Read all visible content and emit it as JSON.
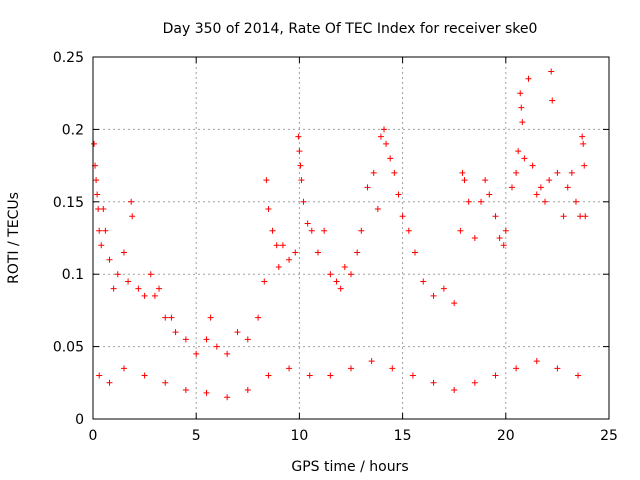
{
  "chart_data": {
    "type": "scatter",
    "title": "Day 350 of 2014, Rate Of TEC Index for receiver ske0",
    "xlabel": "GPS time / hours",
    "ylabel": "ROTI / TECUs",
    "xlim": [
      0,
      25
    ],
    "ylim": [
      0,
      0.25
    ],
    "xticks": [
      0,
      5,
      10,
      15,
      20,
      25
    ],
    "yticks": [
      0,
      0.05,
      0.1,
      0.15,
      0.2,
      0.25
    ],
    "xtick_labels": [
      "0",
      "5",
      "10",
      "15",
      "20",
      "25"
    ],
    "ytick_labels": [
      "0",
      "0.05",
      "0.1",
      "0.15",
      "0.2",
      "0.25"
    ],
    "grid": true,
    "marker": "plus",
    "series_color": "#ff0000",
    "series": [
      {
        "points": [
          [
            0.05,
            0.19
          ],
          [
            0.1,
            0.175
          ],
          [
            0.15,
            0.165
          ],
          [
            0.2,
            0.155
          ],
          [
            0.25,
            0.145
          ],
          [
            0.3,
            0.13
          ],
          [
            0.4,
            0.12
          ],
          [
            0.5,
            0.145
          ],
          [
            0.6,
            0.13
          ],
          [
            0.8,
            0.11
          ],
          [
            1.0,
            0.09
          ],
          [
            1.2,
            0.1
          ],
          [
            1.5,
            0.115
          ],
          [
            1.7,
            0.095
          ],
          [
            1.85,
            0.15
          ],
          [
            1.9,
            0.14
          ],
          [
            2.2,
            0.09
          ],
          [
            2.5,
            0.085
          ],
          [
            2.8,
            0.1
          ],
          [
            3.0,
            0.085
          ],
          [
            3.2,
            0.09
          ],
          [
            3.5,
            0.07
          ],
          [
            3.8,
            0.07
          ],
          [
            4.0,
            0.06
          ],
          [
            4.5,
            0.055
          ],
          [
            5.0,
            0.045
          ],
          [
            5.5,
            0.055
          ],
          [
            5.7,
            0.07
          ],
          [
            6.0,
            0.05
          ],
          [
            6.5,
            0.045
          ],
          [
            7.0,
            0.06
          ],
          [
            7.5,
            0.055
          ],
          [
            8.0,
            0.07
          ],
          [
            8.3,
            0.095
          ],
          [
            8.4,
            0.165
          ],
          [
            8.5,
            0.145
          ],
          [
            8.7,
            0.13
          ],
          [
            8.9,
            0.12
          ],
          [
            9.0,
            0.105
          ],
          [
            9.2,
            0.12
          ],
          [
            9.5,
            0.11
          ],
          [
            9.8,
            0.115
          ],
          [
            9.95,
            0.195
          ],
          [
            10.0,
            0.185
          ],
          [
            10.05,
            0.175
          ],
          [
            10.1,
            0.165
          ],
          [
            10.2,
            0.15
          ],
          [
            10.4,
            0.135
          ],
          [
            10.6,
            0.13
          ],
          [
            10.9,
            0.115
          ],
          [
            11.2,
            0.13
          ],
          [
            11.5,
            0.1
          ],
          [
            11.8,
            0.095
          ],
          [
            12.0,
            0.09
          ],
          [
            12.2,
            0.105
          ],
          [
            12.5,
            0.1
          ],
          [
            12.8,
            0.115
          ],
          [
            13.0,
            0.13
          ],
          [
            13.3,
            0.16
          ],
          [
            13.6,
            0.17
          ],
          [
            13.8,
            0.145
          ],
          [
            13.95,
            0.195
          ],
          [
            14.1,
            0.2
          ],
          [
            14.2,
            0.19
          ],
          [
            14.4,
            0.18
          ],
          [
            14.6,
            0.17
          ],
          [
            14.8,
            0.155
          ],
          [
            15.0,
            0.14
          ],
          [
            15.3,
            0.13
          ],
          [
            15.6,
            0.115
          ],
          [
            16.0,
            0.095
          ],
          [
            16.5,
            0.085
          ],
          [
            17.0,
            0.09
          ],
          [
            17.5,
            0.08
          ],
          [
            17.8,
            0.13
          ],
          [
            17.9,
            0.17
          ],
          [
            18.0,
            0.165
          ],
          [
            18.2,
            0.15
          ],
          [
            18.5,
            0.125
          ],
          [
            18.8,
            0.15
          ],
          [
            19.0,
            0.165
          ],
          [
            19.2,
            0.155
          ],
          [
            19.5,
            0.14
          ],
          [
            19.7,
            0.125
          ],
          [
            19.9,
            0.12
          ],
          [
            20.0,
            0.13
          ],
          [
            20.3,
            0.16
          ],
          [
            20.5,
            0.17
          ],
          [
            20.6,
            0.185
          ],
          [
            20.7,
            0.225
          ],
          [
            20.75,
            0.215
          ],
          [
            20.8,
            0.205
          ],
          [
            20.9,
            0.18
          ],
          [
            21.1,
            0.235
          ],
          [
            21.3,
            0.175
          ],
          [
            21.5,
            0.155
          ],
          [
            21.7,
            0.16
          ],
          [
            21.9,
            0.15
          ],
          [
            22.1,
            0.165
          ],
          [
            22.2,
            0.24
          ],
          [
            22.25,
            0.22
          ],
          [
            22.5,
            0.17
          ],
          [
            22.8,
            0.14
          ],
          [
            23.0,
            0.16
          ],
          [
            23.2,
            0.17
          ],
          [
            23.4,
            0.15
          ],
          [
            23.6,
            0.14
          ],
          [
            23.7,
            0.195
          ],
          [
            23.75,
            0.19
          ],
          [
            23.8,
            0.175
          ],
          [
            23.85,
            0.14
          ],
          [
            0.3,
            0.03
          ],
          [
            0.8,
            0.025
          ],
          [
            1.5,
            0.035
          ],
          [
            2.5,
            0.03
          ],
          [
            3.5,
            0.025
          ],
          [
            4.5,
            0.02
          ],
          [
            5.5,
            0.018
          ],
          [
            6.5,
            0.015
          ],
          [
            7.5,
            0.02
          ],
          [
            8.5,
            0.03
          ],
          [
            9.5,
            0.035
          ],
          [
            10.5,
            0.03
          ],
          [
            11.5,
            0.03
          ],
          [
            12.5,
            0.035
          ],
          [
            13.5,
            0.04
          ],
          [
            14.5,
            0.035
          ],
          [
            15.5,
            0.03
          ],
          [
            16.5,
            0.025
          ],
          [
            17.5,
            0.02
          ],
          [
            18.5,
            0.025
          ],
          [
            19.5,
            0.03
          ],
          [
            20.5,
            0.035
          ],
          [
            21.5,
            0.04
          ],
          [
            22.5,
            0.035
          ],
          [
            23.5,
            0.03
          ]
        ]
      }
    ]
  }
}
